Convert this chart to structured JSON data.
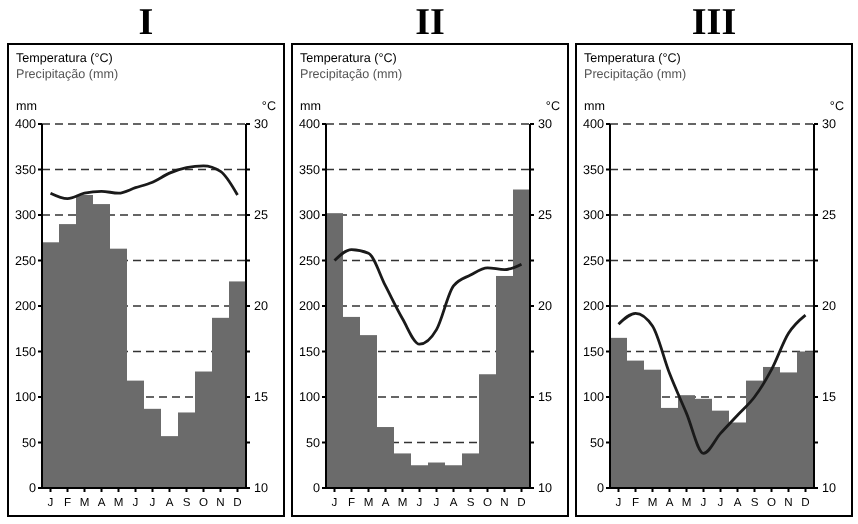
{
  "chart_data": [
    {
      "type": "bar",
      "title": "I",
      "annotations": [
        "Temperatura (°C)",
        "Precipitação (mm)"
      ],
      "ylabel": "mm",
      "y2label": "°C",
      "categories": [
        "J",
        "F",
        "M",
        "A",
        "M",
        "J",
        "J",
        "A",
        "S",
        "O",
        "N",
        "D"
      ],
      "series": [
        {
          "color": "#6b6b6b",
          "values": [
            270,
            290,
            322,
            312,
            263,
            118,
            87,
            57,
            83,
            128,
            187,
            227
          ]
        },
        {
          "type": "line",
          "axis": "y2",
          "color": "#1a1a1a",
          "values": [
            26.2,
            25.9,
            26.2,
            26.3,
            26.2,
            26.5,
            26.8,
            27.3,
            27.6,
            27.7,
            27.4,
            26.1
          ]
        }
      ],
      "ylim": [
        0,
        400
      ],
      "yticks": [
        0,
        50,
        100,
        150,
        200,
        250,
        300,
        350,
        400
      ],
      "y2lim": [
        10,
        30
      ],
      "y2ticks": [
        10,
        {
          "value": 12.5,
          "label": null
        },
        15,
        {
          "value": 17.5,
          "label": null
        },
        20,
        {
          "value": 22.5,
          "label": null
        },
        25,
        {
          "value": 27.5,
          "label": null
        },
        30
      ],
      "grid": "y"
    },
    {
      "type": "bar",
      "title": "II",
      "annotations": [
        "Temperatura (°C)",
        "Precipitação (mm)"
      ],
      "ylabel": "mm",
      "y2label": "°C",
      "categories": [
        "J",
        "F",
        "M",
        "A",
        "M",
        "J",
        "J",
        "A",
        "S",
        "O",
        "N",
        "D"
      ],
      "series": [
        {
          "color": "#6b6b6b",
          "values": [
            302,
            188,
            168,
            67,
            38,
            25,
            28,
            25,
            38,
            125,
            233,
            328
          ]
        },
        {
          "type": "line",
          "axis": "y2",
          "color": "#1a1a1a",
          "values": [
            22.5,
            23.1,
            22.9,
            21.1,
            19.3,
            17.9,
            18.7,
            21.1,
            21.7,
            22.1,
            22.0,
            22.3
          ]
        }
      ],
      "ylim": [
        0,
        400
      ],
      "yticks": [
        0,
        50,
        100,
        150,
        200,
        250,
        300,
        350,
        400
      ],
      "y2lim": [
        10,
        30
      ],
      "y2ticks": [
        10,
        {
          "value": 12.5,
          "label": null
        },
        15,
        {
          "value": 17.5,
          "label": null
        },
        20,
        {
          "value": 22.5,
          "label": null
        },
        25,
        {
          "value": 27.5,
          "label": null
        },
        30
      ],
      "grid": "y"
    },
    {
      "type": "bar",
      "title": "III",
      "annotations": [
        "Temperatura (°C)",
        "Precipitação (mm)"
      ],
      "ylabel": "mm",
      "y2label": "°C",
      "categories": [
        "J",
        "F",
        "M",
        "A",
        "M",
        "J",
        "J",
        "A",
        "S",
        "O",
        "N",
        "D"
      ],
      "series": [
        {
          "color": "#6b6b6b",
          "values": [
            165,
            140,
            130,
            88,
            102,
            98,
            85,
            72,
            118,
            133,
            127,
            150
          ]
        },
        {
          "type": "line",
          "axis": "y2",
          "color": "#1a1a1a",
          "values": [
            19.0,
            19.6,
            18.9,
            16.3,
            14.1,
            11.9,
            13.0,
            14.0,
            15.0,
            16.5,
            18.5,
            19.5
          ]
        }
      ],
      "ylim": [
        0,
        400
      ],
      "yticks": [
        0,
        50,
        100,
        150,
        200,
        250,
        300,
        350,
        400
      ],
      "y2lim": [
        10,
        30
      ],
      "y2ticks": [
        10,
        {
          "value": 12.5,
          "label": null
        },
        15,
        {
          "value": 17.5,
          "label": null
        },
        20,
        {
          "value": 22.5,
          "label": null
        },
        25,
        {
          "value": 27.5,
          "label": null
        },
        30
      ],
      "grid": "y"
    }
  ]
}
